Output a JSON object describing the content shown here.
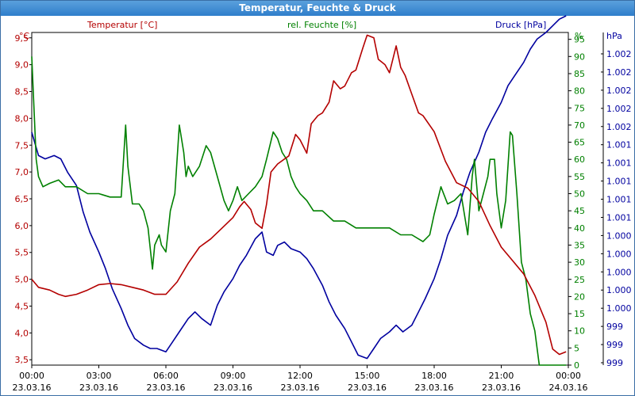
{
  "window": {
    "title": "Temperatur, Feuchte & Druck"
  },
  "colors": {
    "temperature": "#b40000",
    "humidity": "#008000",
    "pressure": "#00009f",
    "grid": "#000000"
  },
  "chart_data": {
    "type": "line",
    "title": "Temperatur, Feuchte & Druck",
    "series": [
      {
        "name": "Temperatur [°C]",
        "axis": "left",
        "unit": "°C"
      },
      {
        "name": "rel. Feuchte [%]",
        "axis": "right1",
        "unit": "%"
      },
      {
        "name": "Druck [hPa]",
        "axis": "right2",
        "unit": "hPa"
      }
    ],
    "axes": {
      "left": {
        "unit": "°C",
        "range": [
          3.4,
          9.6
        ],
        "ticks": [
          "9,5",
          "9,0",
          "8,5",
          "8,0",
          "7,5",
          "7,0",
          "6,5",
          "6,0",
          "5,5",
          "5,0",
          "4,5",
          "4,0",
          "3,5"
        ]
      },
      "right1": {
        "unit": "%",
        "range": [
          0,
          97
        ],
        "ticks": [
          "95",
          "90",
          "85",
          "80",
          "75",
          "70",
          "65",
          "60",
          "55",
          "50",
          "45",
          "40",
          "35",
          "30",
          "25",
          "20",
          "15",
          "10",
          "5",
          "0"
        ]
      },
      "right2": {
        "unit": "hPa",
        "ticks": [
          "1.002",
          "1.002",
          "1.002",
          "1.002",
          "1.002",
          "1.001",
          "1.001",
          "1.001",
          "1.001",
          "1.001",
          "1.000",
          "1.000",
          "1.000",
          "1.000",
          "1.000",
          "999",
          "999",
          "999"
        ]
      },
      "x": {
        "range": [
          0,
          24
        ],
        "ticks": [
          {
            "time": "00:00",
            "date": "23.03.16"
          },
          {
            "time": "03:00",
            "date": "23.03.16"
          },
          {
            "time": "06:00",
            "date": "23.03.16"
          },
          {
            "time": "09:00",
            "date": "23.03.16"
          },
          {
            "time": "12:00",
            "date": "23.03.16"
          },
          {
            "time": "15:00",
            "date": "23.03.16"
          },
          {
            "time": "18:00",
            "date": "23.03.16"
          },
          {
            "time": "21:00",
            "date": "23.03.16"
          },
          {
            "time": "00:00",
            "date": "24.03.16"
          }
        ]
      }
    },
    "temperature": {
      "x": [
        0,
        0.3,
        0.8,
        1.2,
        1.5,
        2.0,
        2.5,
        3.0,
        3.5,
        4.0,
        4.5,
        5.0,
        5.5,
        6.0,
        6.5,
        7.0,
        7.5,
        8.0,
        8.5,
        9.0,
        9.3,
        9.5,
        9.8,
        10.0,
        10.3,
        10.5,
        10.7,
        11.0,
        11.5,
        11.8,
        12.0,
        12.3,
        12.5,
        12.8,
        13.0,
        13.3,
        13.5,
        13.8,
        14.0,
        14.3,
        14.5,
        14.8,
        15.0,
        15.3,
        15.5,
        15.8,
        16.0,
        16.3,
        16.5,
        16.7,
        17.0,
        17.3,
        17.5,
        18.0,
        18.5,
        19.0,
        19.5,
        20.0,
        20.5,
        21.0,
        21.5,
        22.0,
        22.5,
        23.0,
        23.3,
        23.6,
        23.9
      ],
      "y": [
        5.0,
        4.85,
        4.8,
        4.72,
        4.68,
        4.72,
        4.8,
        4.9,
        4.92,
        4.9,
        4.85,
        4.8,
        4.72,
        4.72,
        4.95,
        5.3,
        5.6,
        5.75,
        5.95,
        6.15,
        6.35,
        6.45,
        6.3,
        6.05,
        5.95,
        6.4,
        7.0,
        7.15,
        7.3,
        7.7,
        7.6,
        7.35,
        7.9,
        8.05,
        8.1,
        8.3,
        8.7,
        8.55,
        8.6,
        8.85,
        8.9,
        9.3,
        9.55,
        9.5,
        9.1,
        9.0,
        8.85,
        9.35,
        8.95,
        8.8,
        8.45,
        8.1,
        8.05,
        7.75,
        7.2,
        6.8,
        6.7,
        6.45,
        6.0,
        5.6,
        5.35,
        5.1,
        4.7,
        4.2,
        3.7,
        3.6,
        3.65
      ]
    },
    "humidity": {
      "x": [
        0,
        0.2,
        0.3,
        0.5,
        0.8,
        1.2,
        1.5,
        2.0,
        2.5,
        3.0,
        3.5,
        4.0,
        4.2,
        4.3,
        4.5,
        4.8,
        5.0,
        5.2,
        5.4,
        5.5,
        5.7,
        5.8,
        6.0,
        6.2,
        6.4,
        6.6,
        6.8,
        6.9,
        7.0,
        7.2,
        7.5,
        7.8,
        8.0,
        8.3,
        8.6,
        8.8,
        9.0,
        9.2,
        9.4,
        9.7,
        10.0,
        10.3,
        10.5,
        10.8,
        11.0,
        11.2,
        11.4,
        11.6,
        11.8,
        12.0,
        12.3,
        12.6,
        13.0,
        13.5,
        14.0,
        14.5,
        15.0,
        15.5,
        16.0,
        16.5,
        17.0,
        17.5,
        17.8,
        18.0,
        18.3,
        18.6,
        18.9,
        19.2,
        19.5,
        19.7,
        19.8,
        20.0,
        20.2,
        20.4,
        20.5,
        20.7,
        20.8,
        21.0,
        21.2,
        21.4,
        21.5,
        21.7,
        21.9,
        22.1,
        22.3,
        22.5,
        22.7,
        22.9,
        23.0,
        23.2,
        23.5,
        23.9
      ],
      "y": [
        90,
        60,
        55,
        52,
        53,
        54,
        52,
        52,
        50,
        50,
        49,
        49,
        70,
        58,
        47,
        47,
        45,
        40,
        28,
        35,
        38,
        35,
        33,
        45,
        50,
        70,
        62,
        55,
        58,
        55,
        58,
        64,
        62,
        55,
        48,
        45,
        48,
        52,
        48,
        50,
        52,
        55,
        60,
        68,
        66,
        62,
        60,
        55,
        52,
        50,
        48,
        45,
        45,
        42,
        42,
        40,
        40,
        40,
        40,
        38,
        38,
        36,
        38,
        44,
        52,
        47,
        48,
        50,
        38,
        55,
        60,
        45,
        50,
        55,
        60,
        60,
        50,
        40,
        48,
        68,
        67,
        50,
        30,
        25,
        15,
        10,
        0,
        0,
        0,
        0,
        0,
        0
      ]
    },
    "pressure_path_note": "",
    "pressure": {
      "x": [
        0,
        0.3,
        0.6,
        1.0,
        1.3,
        1.6,
        2.0,
        2.3,
        2.6,
        3.0,
        3.3,
        3.6,
        4.0,
        4.3,
        4.6,
        5.0,
        5.3,
        5.6,
        6.0,
        6.3,
        6.6,
        7.0,
        7.3,
        7.6,
        8.0,
        8.3,
        8.6,
        9.0,
        9.3,
        9.6,
        10.0,
        10.3,
        10.5,
        10.8,
        11.0,
        11.3,
        11.6,
        12.0,
        12.3,
        12.6,
        13.0,
        13.3,
        13.6,
        14.0,
        14.3,
        14.6,
        15.0,
        15.3,
        15.6,
        16.0,
        16.3,
        16.6,
        17.0,
        17.3,
        17.6,
        18.0,
        18.3,
        18.6,
        19.0,
        19.3,
        19.6,
        20.0,
        20.3,
        20.6,
        21.0,
        21.3,
        21.6,
        22.0,
        22.3,
        22.6,
        23.0,
        23.3,
        23.6,
        23.9
      ],
      "y": [
        0.7,
        0.63,
        0.62,
        0.63,
        0.62,
        0.58,
        0.54,
        0.46,
        0.4,
        0.34,
        0.29,
        0.23,
        0.17,
        0.12,
        0.08,
        0.06,
        0.05,
        0.05,
        0.04,
        0.07,
        0.1,
        0.14,
        0.16,
        0.14,
        0.12,
        0.18,
        0.22,
        0.26,
        0.3,
        0.33,
        0.38,
        0.4,
        0.34,
        0.33,
        0.36,
        0.37,
        0.35,
        0.34,
        0.32,
        0.29,
        0.24,
        0.19,
        0.15,
        0.11,
        0.07,
        0.03,
        0.02,
        0.05,
        0.08,
        0.1,
        0.12,
        0.1,
        0.12,
        0.16,
        0.2,
        0.26,
        0.32,
        0.39,
        0.45,
        0.52,
        0.58,
        0.64,
        0.7,
        0.74,
        0.79,
        0.84,
        0.87,
        0.91,
        0.95,
        0.98,
        1.0,
        1.02,
        1.04,
        1.05
      ]
    }
  }
}
